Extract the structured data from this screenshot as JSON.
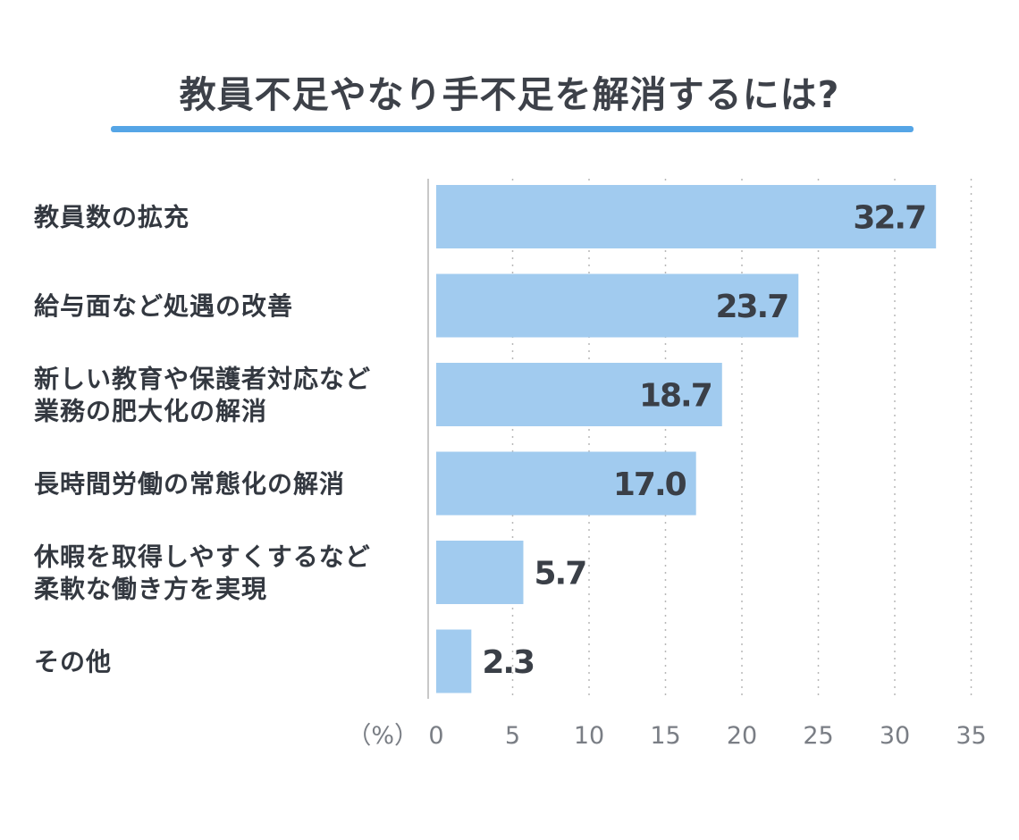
{
  "title": "教員不足やなり手不足を解消するには?",
  "colors": {
    "bar": "#a1cbef",
    "accent": "#55a5e6",
    "axis": "#c8c8c8",
    "grid": "#b8b8b8"
  },
  "chart_data": {
    "type": "bar",
    "orientation": "horizontal",
    "categories": [
      [
        "教員数の拡充"
      ],
      [
        "給与面など処遇の改善"
      ],
      [
        "新しい教育や保護者対応など",
        "業務の肥大化の解消"
      ],
      [
        "長時間労働の常態化の解消"
      ],
      [
        "休暇を取得しやすくするなど",
        "柔軟な働き方を実現"
      ],
      [
        "その他"
      ]
    ],
    "values": [
      32.7,
      23.7,
      18.7,
      17.0,
      5.7,
      2.3
    ],
    "value_labels": [
      "32.7",
      "23.7",
      "18.7",
      "17.0",
      "5.7",
      "2.3"
    ],
    "xlim": [
      0,
      35
    ],
    "xticks": [
      0,
      5,
      10,
      15,
      20,
      25,
      30,
      35
    ],
    "xtick_labels": [
      "0",
      "5",
      "10",
      "15",
      "20",
      "25",
      "30",
      "35"
    ],
    "unit_label": "（%）",
    "grid": "vertical dotted",
    "legend": "none"
  }
}
